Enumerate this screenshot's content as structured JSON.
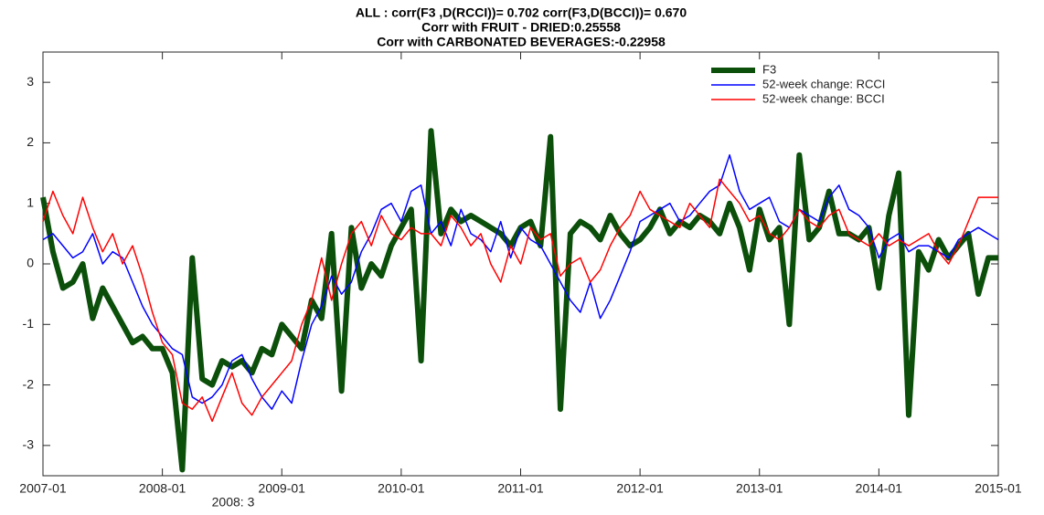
{
  "chart_data": {
    "type": "line",
    "title": [
      "ALL : corr(F3 ,D(RCCI))=  0.702 corr(F3,D(BCCI))= 0.670",
      "Corr with FRUIT - DRIED:0.25558",
      "Corr with CARBONATED BEVERAGES:-0.22958"
    ],
    "annotation": "2008: 3",
    "x": [
      "2007-01",
      "2007-02",
      "2007-03",
      "2007-04",
      "2007-05",
      "2007-06",
      "2007-07",
      "2007-08",
      "2007-09",
      "2007-10",
      "2007-11",
      "2007-12",
      "2008-01",
      "2008-02",
      "2008-03",
      "2008-04",
      "2008-05",
      "2008-06",
      "2008-07",
      "2008-08",
      "2008-09",
      "2008-10",
      "2008-11",
      "2008-12",
      "2009-01",
      "2009-02",
      "2009-03",
      "2009-04",
      "2009-05",
      "2009-06",
      "2009-07",
      "2009-08",
      "2009-09",
      "2009-10",
      "2009-11",
      "2009-12",
      "2010-01",
      "2010-02",
      "2010-03",
      "2010-04",
      "2010-05",
      "2010-06",
      "2010-07",
      "2010-08",
      "2010-09",
      "2010-10",
      "2010-11",
      "2010-12",
      "2011-01",
      "2011-02",
      "2011-03",
      "2011-04",
      "2011-05",
      "2011-06",
      "2011-07",
      "2011-08",
      "2011-09",
      "2011-10",
      "2011-11",
      "2011-12",
      "2012-01",
      "2012-02",
      "2012-03",
      "2012-04",
      "2012-05",
      "2012-06",
      "2012-07",
      "2012-08",
      "2012-09",
      "2012-10",
      "2012-11",
      "2012-12",
      "2013-01",
      "2013-02",
      "2013-03",
      "2013-04",
      "2013-05",
      "2013-06",
      "2013-07",
      "2013-08",
      "2013-09",
      "2013-10",
      "2013-11",
      "2013-12",
      "2014-01",
      "2014-02",
      "2014-03",
      "2014-04",
      "2014-05",
      "2014-06",
      "2014-07",
      "2014-08",
      "2014-09",
      "2014-10",
      "2014-11",
      "2014-12",
      "2015-01"
    ],
    "series": [
      {
        "name": "F3",
        "color": "#0b4f0b",
        "width": 6,
        "values": [
          1.1,
          0.2,
          -0.4,
          -0.3,
          0.0,
          -0.9,
          -0.4,
          -0.7,
          -1.0,
          -1.3,
          -1.2,
          -1.4,
          -1.4,
          -1.8,
          -3.4,
          0.1,
          -1.9,
          -2.0,
          -1.6,
          -1.7,
          -1.6,
          -1.8,
          -1.4,
          -1.5,
          -1.0,
          -1.2,
          -1.4,
          -0.6,
          -0.9,
          0.5,
          -2.1,
          0.6,
          -0.4,
          0.0,
          -0.2,
          0.3,
          0.6,
          0.9,
          -1.6,
          2.2,
          0.5,
          0.9,
          0.7,
          0.8,
          0.7,
          0.6,
          0.5,
          0.3,
          0.6,
          0.7,
          0.3,
          2.1,
          -2.4,
          0.5,
          0.7,
          0.6,
          0.4,
          0.8,
          0.5,
          0.3,
          0.4,
          0.6,
          0.9,
          0.5,
          0.7,
          0.6,
          0.8,
          0.7,
          0.5,
          1.0,
          0.6,
          -0.1,
          0.9,
          0.4,
          0.6,
          -1.0,
          1.8,
          0.4,
          0.6,
          1.2,
          0.5,
          0.5,
          0.4,
          0.6,
          -0.4,
          0.8,
          1.5,
          -2.5,
          0.2,
          -0.1,
          0.4,
          0.1,
          0.3,
          0.5,
          -0.5,
          0.1,
          0.1
        ]
      },
      {
        "name": "52-week change: RCCI",
        "color": "#0000ff",
        "width": 1.5,
        "values": [
          0.4,
          0.5,
          0.3,
          0.1,
          0.2,
          0.5,
          0.0,
          0.2,
          0.1,
          -0.3,
          -0.7,
          -1.0,
          -1.2,
          -1.4,
          -1.5,
          -2.2,
          -2.3,
          -2.2,
          -2.0,
          -1.6,
          -1.5,
          -1.9,
          -2.2,
          -2.4,
          -2.1,
          -2.3,
          -1.6,
          -1.0,
          -0.7,
          -0.2,
          -0.5,
          -0.3,
          0.2,
          0.5,
          0.9,
          1.0,
          0.7,
          1.2,
          1.3,
          0.5,
          0.7,
          0.3,
          0.9,
          0.5,
          0.4,
          0.2,
          0.7,
          0.1,
          0.6,
          0.4,
          0.3,
          0.0,
          -0.3,
          -0.6,
          -0.8,
          -0.3,
          -0.9,
          -0.6,
          -0.2,
          0.2,
          0.7,
          0.8,
          0.9,
          1.0,
          0.7,
          0.8,
          1.0,
          1.2,
          1.3,
          1.8,
          1.2,
          0.9,
          1.0,
          1.1,
          0.7,
          0.6,
          0.9,
          0.8,
          0.7,
          1.1,
          1.3,
          0.9,
          0.8,
          0.6,
          0.1,
          0.4,
          0.5,
          0.2,
          0.3,
          0.3,
          0.2,
          0.1,
          0.4,
          0.5,
          0.6,
          0.5,
          0.4
        ]
      },
      {
        "name": "52-week change: BCCI",
        "color": "#ff0000",
        "width": 1.5,
        "values": [
          0.7,
          1.2,
          0.8,
          0.5,
          1.1,
          0.6,
          0.2,
          0.5,
          0.0,
          0.3,
          -0.2,
          -0.8,
          -1.3,
          -1.5,
          -2.3,
          -2.4,
          -2.2,
          -2.6,
          -2.2,
          -1.8,
          -2.3,
          -2.5,
          -2.2,
          -2.0,
          -1.8,
          -1.6,
          -1.0,
          -0.6,
          0.1,
          -0.6,
          0.0,
          0.5,
          0.7,
          0.3,
          0.8,
          0.5,
          0.4,
          0.6,
          0.5,
          0.5,
          0.3,
          0.8,
          0.6,
          0.3,
          0.5,
          0.0,
          -0.3,
          0.3,
          0.0,
          0.6,
          0.4,
          0.5,
          -0.2,
          0.0,
          0.1,
          -0.3,
          -0.1,
          0.3,
          0.6,
          0.8,
          1.2,
          0.9,
          0.8,
          0.7,
          0.6,
          1.0,
          0.8,
          0.6,
          1.4,
          1.2,
          1.0,
          0.7,
          0.8,
          0.5,
          0.4,
          0.6,
          0.9,
          0.7,
          0.6,
          0.8,
          0.9,
          0.5,
          0.4,
          0.3,
          0.5,
          0.3,
          0.4,
          0.3,
          0.4,
          0.5,
          0.2,
          0.0,
          0.3,
          0.7,
          1.1,
          1.1,
          1.1
        ]
      }
    ],
    "xlim": [
      "2007-01",
      "2015-01"
    ],
    "xticks": [
      "2007-01",
      "2008-01",
      "2009-01",
      "2010-01",
      "2011-01",
      "2012-01",
      "2013-01",
      "2014-01",
      "2015-01"
    ],
    "ylim": [
      -3.5,
      3.5
    ],
    "yticks": [
      -3,
      -2,
      -1,
      0,
      1,
      2,
      3
    ],
    "legend": "upper right"
  }
}
